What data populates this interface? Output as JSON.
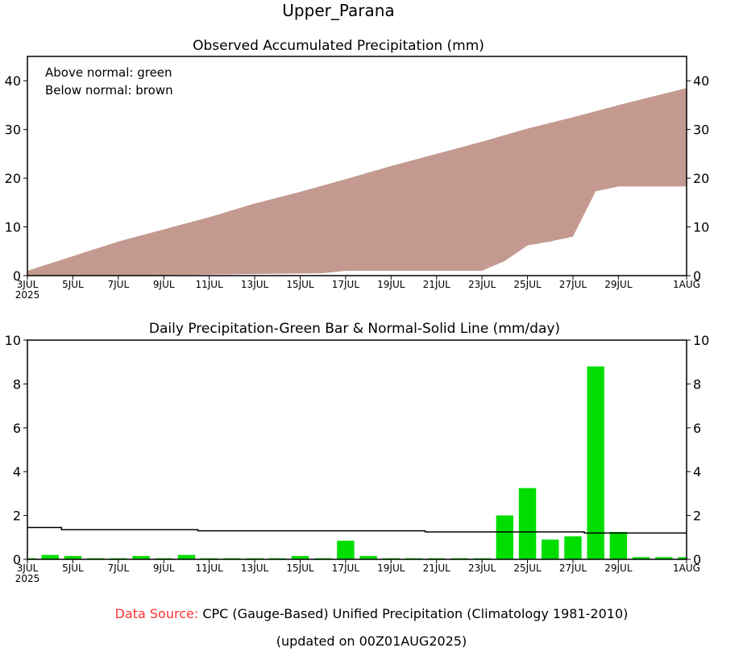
{
  "title": "Upper_Parana",
  "footer": {
    "source_label": "Data Source:",
    "source_text": "CPC (Gauge-Based) Unified Precipitation (Climatology 1981-2010)",
    "updated": "(updated on 00Z01AUG2025)",
    "source_label_color": "#ff3333"
  },
  "chart_data": [
    {
      "type": "area",
      "title": "Observed Accumulated Precipitation (mm)",
      "legend": [
        "Above normal: green",
        "Below normal: brown"
      ],
      "legend_placement": "top-left",
      "ylim": [
        0,
        45
      ],
      "yticks": [
        0,
        10,
        20,
        30,
        40
      ],
      "xlim_days": [
        0,
        29
      ],
      "xtick_labels": [
        "3JUL",
        "5JUL",
        "7JUL",
        "9JUL",
        "11JUL",
        "13JUL",
        "15JUL",
        "17JUL",
        "19JUL",
        "21JUL",
        "23JUL",
        "25JUL",
        "27JUL",
        "29JUL",
        "1AUG"
      ],
      "xtick_days": [
        0,
        2,
        4,
        6,
        8,
        10,
        12,
        14,
        16,
        18,
        20,
        22,
        24,
        26,
        29
      ],
      "year_label": "2025",
      "below_color": "#c49a90",
      "above_color": "#00dd00",
      "normal_x": [
        0,
        2,
        4,
        6,
        8,
        10,
        12,
        14,
        16,
        18,
        20,
        22,
        24,
        26,
        29
      ],
      "normal": [
        1,
        4,
        7,
        9.5,
        12,
        14.8,
        17.2,
        19.8,
        22.5,
        25,
        27.5,
        30.2,
        32.5,
        35,
        38.5
      ],
      "observed_x": [
        0,
        6,
        13,
        14,
        20,
        21,
        22,
        23,
        24,
        25,
        26,
        29
      ],
      "observed": [
        0,
        0.1,
        0.5,
        1.0,
        1.0,
        3.0,
        6.2,
        7.0,
        8.0,
        17.3,
        18.3,
        18.3
      ]
    },
    {
      "type": "bar",
      "title": "Daily Precipitation-Green Bar & Normal-Solid Line (mm/day)",
      "ylim": [
        0,
        10
      ],
      "yticks": [
        0,
        2,
        4,
        6,
        8,
        10
      ],
      "bar_color": "#00dd00",
      "bar_days": [
        0,
        1,
        2,
        3,
        4,
        5,
        6,
        7,
        8,
        9,
        10,
        11,
        12,
        13,
        14,
        15,
        16,
        17,
        18,
        19,
        20,
        21,
        22,
        23,
        24,
        25,
        26,
        27,
        28,
        29
      ],
      "values": [
        0.05,
        0.2,
        0.15,
        0.05,
        0.05,
        0.15,
        0.05,
        0.2,
        0.05,
        0.05,
        0.05,
        0.05,
        0.15,
        0.05,
        0.85,
        0.15,
        0.05,
        0.05,
        0.05,
        0.05,
        0.05,
        2.0,
        3.25,
        0.9,
        1.05,
        8.8,
        1.25,
        0.1,
        0.1,
        0.1
      ],
      "normal_steps_x": [
        0,
        1.5,
        7.5,
        17.5,
        24.5,
        29
      ],
      "normal_steps": [
        1.45,
        1.35,
        1.3,
        1.25,
        1.2,
        1.2
      ]
    }
  ]
}
